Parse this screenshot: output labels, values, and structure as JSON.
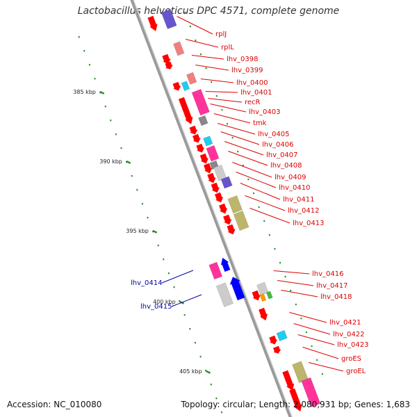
{
  "title": "Lactobacillus helveticus DPC 4571, complete genome",
  "accession_label": "Accession: NC_010080",
  "stats_label": "Topology: circular; Length: 2,080,931 bp; Genes: 1,683",
  "colors": {
    "backbone": "#9a9a9a",
    "scale_dots": "#2e8b2e",
    "forward_label": "#dd0000",
    "reverse_label": "#0000aa",
    "gene_red": "#ff0000",
    "gene_pink": "#ff3399",
    "gene_blue": "#0000ff",
    "gene_purple": "#6655cc",
    "gene_cyan": "#22ccee",
    "gene_gray": "#888888",
    "gene_light_gray": "#cccccc",
    "gene_khaki": "#bdb56a",
    "gene_orange": "#ff9900",
    "gene_green": "#44bb44",
    "gene_salmon": "#f08080"
  },
  "scale_labels": [
    "385 kbp",
    "390 kbp",
    "395 kbp",
    "400 kbp",
    "405 kbp"
  ],
  "forward_genes": [
    "rplJ",
    "rplL",
    "lhv_0398",
    "lhv_0399",
    "lhv_0400",
    "lhv_0401",
    "recR",
    "lhv_0403",
    "tmk",
    "lhv_0405",
    "lhv_0406",
    "lhv_0407",
    "lhv_0408",
    "lhv_0409",
    "lhv_0410",
    "lhv_0411",
    "lhv_0412",
    "lhv_0413",
    "lhv_0416",
    "lhv_0417",
    "lhv_0418",
    "lhv_0421",
    "lhv_0422",
    "lhv_0423",
    "groES",
    "groEL"
  ],
  "reverse_genes": [
    "lhv_0414",
    "lhv_0415"
  ]
}
